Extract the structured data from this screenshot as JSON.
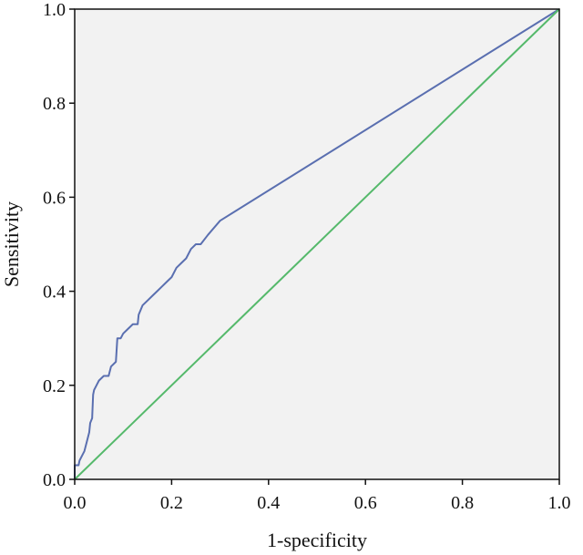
{
  "chart_data": {
    "type": "line",
    "title": "",
    "xlabel": "1-specificity",
    "ylabel": "Sensitivity",
    "xlim": [
      0,
      1
    ],
    "ylim": [
      0,
      1
    ],
    "xticks": [
      0,
      0.2,
      0.4,
      0.6,
      0.8,
      1.0
    ],
    "yticks": [
      0,
      0.2,
      0.4,
      0.6,
      0.8,
      1.0
    ],
    "xtick_labels": [
      "0.0",
      "0.2",
      "0.4",
      "0.6",
      "0.8",
      "1.0"
    ],
    "ytick_labels": [
      "0.0",
      "0.2",
      "0.4",
      "0.6",
      "0.8",
      "1.0"
    ],
    "grid": false,
    "legend": "none",
    "plot_background": "#f2f2f2",
    "series": [
      {
        "color": "#5a6fb0",
        "points": [
          [
            0.0,
            0.0
          ],
          [
            0.0,
            0.03
          ],
          [
            0.008,
            0.03
          ],
          [
            0.01,
            0.04
          ],
          [
            0.015,
            0.05
          ],
          [
            0.02,
            0.06
          ],
          [
            0.025,
            0.08
          ],
          [
            0.03,
            0.1
          ],
          [
            0.032,
            0.12
          ],
          [
            0.036,
            0.13
          ],
          [
            0.038,
            0.18
          ],
          [
            0.04,
            0.19
          ],
          [
            0.045,
            0.2
          ],
          [
            0.05,
            0.21
          ],
          [
            0.06,
            0.22
          ],
          [
            0.07,
            0.22
          ],
          [
            0.075,
            0.24
          ],
          [
            0.085,
            0.25
          ],
          [
            0.088,
            0.3
          ],
          [
            0.095,
            0.3
          ],
          [
            0.1,
            0.31
          ],
          [
            0.11,
            0.32
          ],
          [
            0.12,
            0.33
          ],
          [
            0.13,
            0.33
          ],
          [
            0.132,
            0.35
          ],
          [
            0.14,
            0.37
          ],
          [
            0.15,
            0.38
          ],
          [
            0.16,
            0.39
          ],
          [
            0.17,
            0.4
          ],
          [
            0.18,
            0.41
          ],
          [
            0.19,
            0.42
          ],
          [
            0.2,
            0.43
          ],
          [
            0.21,
            0.45
          ],
          [
            0.22,
            0.46
          ],
          [
            0.23,
            0.47
          ],
          [
            0.24,
            0.49
          ],
          [
            0.25,
            0.5
          ],
          [
            0.26,
            0.5
          ],
          [
            0.275,
            0.52
          ],
          [
            0.3,
            0.55
          ],
          [
            1.0,
            1.0
          ]
        ]
      },
      {
        "color": "#55b96b",
        "points": [
          [
            0.0,
            0.0
          ],
          [
            1.0,
            1.0
          ]
        ]
      }
    ]
  }
}
